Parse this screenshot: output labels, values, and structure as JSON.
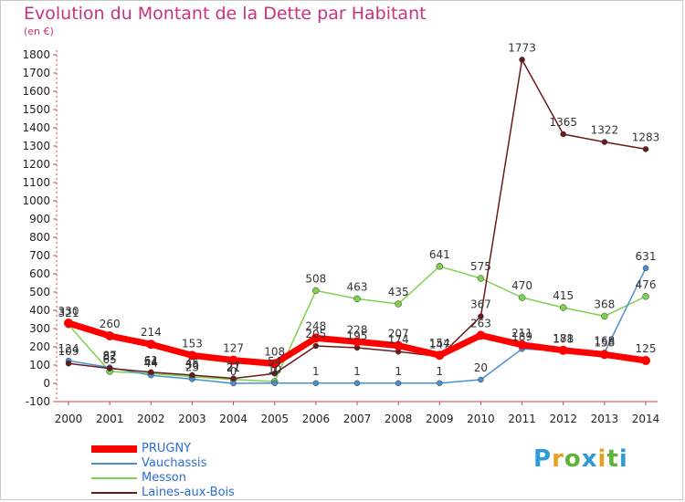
{
  "chart_data": {
    "type": "line",
    "title": "Evolution du Montant de la Dette par Habitant",
    "subtitle": "(en €)",
    "x": [
      "2000",
      "2001",
      "2002",
      "2003",
      "2004",
      "2005",
      "2006",
      "2007",
      "2008",
      "2009",
      "2010",
      "2011",
      "2012",
      "2013",
      "2014"
    ],
    "ylim": [
      -100,
      1800
    ],
    "yticks": [
      -100,
      0,
      100,
      200,
      300,
      400,
      500,
      600,
      700,
      800,
      900,
      1000,
      1100,
      1200,
      1300,
      1400,
      1500,
      1600,
      1700,
      1800
    ],
    "grid": false,
    "legend_position": "bottom-left",
    "series": [
      {
        "name": "PRUGNY",
        "color": "#ff0000",
        "values": [
          330,
          260,
          214,
          153,
          127,
          108,
          248,
          228,
          207,
          154,
          263,
          211,
          181,
          158,
          125
        ]
      },
      {
        "name": "Vauchassis",
        "color": "#4a90d0",
        "values": [
          124,
          87,
          44,
          23,
          0,
          1,
          1,
          1,
          1,
          1,
          20,
          189,
          178,
          168,
          631
        ]
      },
      {
        "name": "Messon",
        "color": "#7ed14c",
        "values": [
          321,
          65,
          54,
          36,
          21,
          10,
          508,
          463,
          435,
          641,
          575,
          470,
          415,
          368,
          476
        ]
      },
      {
        "name": "Laines-aux-Bois",
        "color": "#6b1a1a",
        "values": [
          109,
          82,
          61,
          45,
          27,
          54,
          205,
          195,
          174,
          147,
          367,
          1773,
          1365,
          1322,
          1283
        ]
      }
    ],
    "labels": {
      "PRUGNY": [
        "330",
        "260",
        "214",
        "153",
        "127",
        "108",
        "248",
        "228",
        "207",
        "154",
        "263",
        "211",
        "181",
        "158",
        "125"
      ],
      "Vauchassis": [
        "124",
        "87",
        "44",
        "23",
        "0",
        "1",
        "1",
        "1",
        "1",
        "1",
        "20",
        "189",
        "178",
        "168",
        "631"
      ],
      "Messon": [
        "321",
        "65",
        "54",
        "36",
        "21",
        "10",
        "508",
        "463",
        "435",
        "641",
        "575",
        "470",
        "415",
        "368",
        "476"
      ],
      "Laines-aux-Bois": [
        "109",
        "82",
        "61",
        "45",
        "27",
        "54",
        "205",
        "195",
        "174",
        "147",
        "367",
        "1773",
        "1365",
        "1322",
        "1283"
      ]
    }
  },
  "logo": {
    "letters": [
      "P",
      "r",
      "o",
      "x",
      "i",
      "t",
      "i"
    ]
  }
}
